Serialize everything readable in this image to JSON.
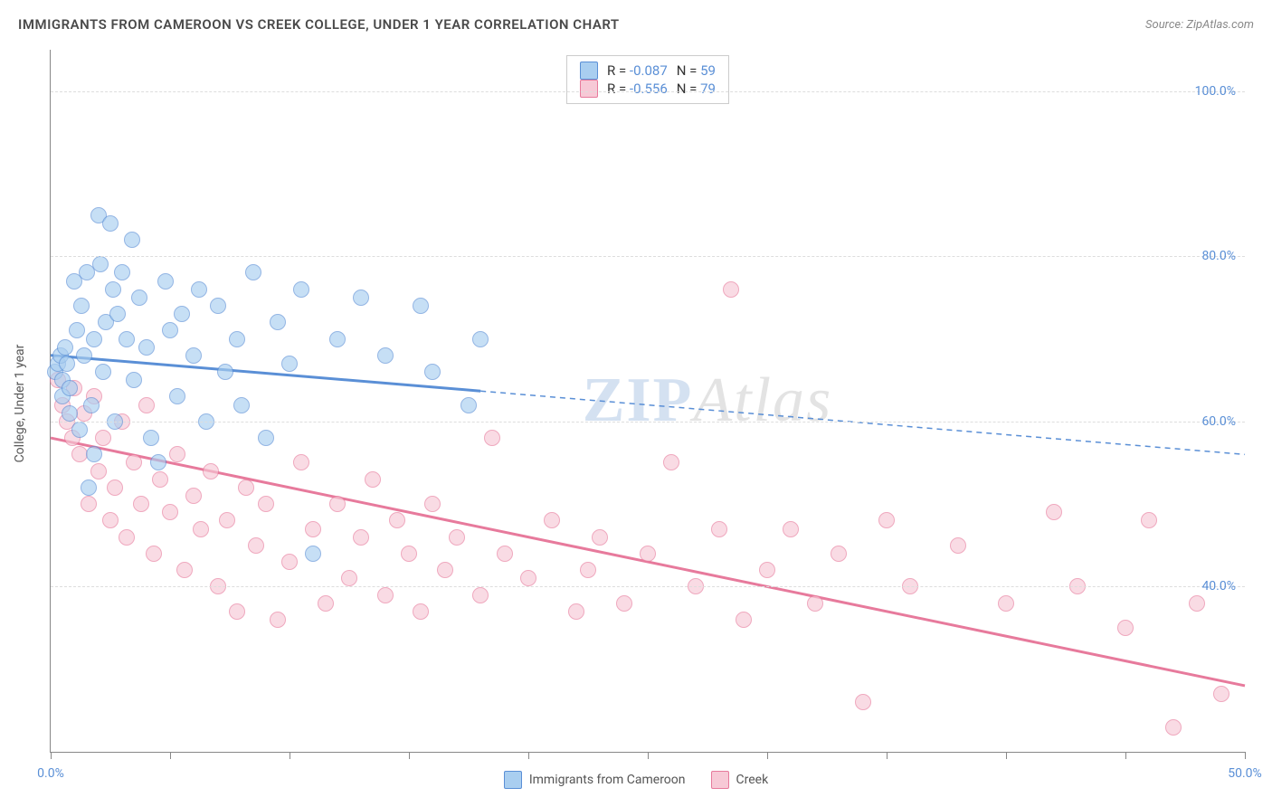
{
  "header": {
    "title": "IMMIGRANTS FROM CAMEROON VS CREEK COLLEGE, UNDER 1 YEAR CORRELATION CHART",
    "source": "Source: ZipAtlas.com"
  },
  "watermark": {
    "z": "ZIP",
    "rest": "Atlas"
  },
  "axes": {
    "ylabel": "College, Under 1 year",
    "ylim": [
      20,
      105
    ],
    "yticks": [
      40,
      60,
      80,
      100
    ],
    "ytick_labels": [
      "40.0%",
      "60.0%",
      "80.0%",
      "100.0%"
    ],
    "xlim": [
      0,
      50
    ],
    "xticks": [
      0,
      5,
      10,
      15,
      20,
      25,
      30,
      35,
      40,
      45,
      50
    ],
    "xtick_labels": {
      "0": "0.0%",
      "50": "50.0%"
    }
  },
  "legend_top": {
    "rows": [
      {
        "swatch": "blue",
        "r_label": "R =",
        "r_val": "-0.087",
        "n_label": "N =",
        "n_val": "59"
      },
      {
        "swatch": "pink",
        "r_label": "R =",
        "r_val": "-0.556",
        "n_label": "N =",
        "n_val": "79"
      }
    ]
  },
  "bottom_legend": {
    "items": [
      {
        "swatch": "blue",
        "label": "Immigrants from Cameroon"
      },
      {
        "swatch": "pink",
        "label": "Creek"
      }
    ]
  },
  "series": {
    "blue": {
      "color_fill": "#a9cef0",
      "color_stroke": "#5a8fd6",
      "marker_size": 18,
      "regression": {
        "x1": 0,
        "y1": 68,
        "x2": 50,
        "y2": 56,
        "solid_until_x": 18,
        "stroke_width": 3
      },
      "points": [
        [
          0.2,
          66
        ],
        [
          0.3,
          67
        ],
        [
          0.4,
          68
        ],
        [
          0.5,
          65
        ],
        [
          0.5,
          63
        ],
        [
          0.6,
          69
        ],
        [
          0.7,
          67
        ],
        [
          0.8,
          64
        ],
        [
          0.8,
          61
        ],
        [
          1.0,
          77
        ],
        [
          1.1,
          71
        ],
        [
          1.2,
          59
        ],
        [
          1.3,
          74
        ],
        [
          1.4,
          68
        ],
        [
          1.5,
          78
        ],
        [
          1.6,
          52
        ],
        [
          1.7,
          62
        ],
        [
          1.8,
          56
        ],
        [
          1.8,
          70
        ],
        [
          2.0,
          85
        ],
        [
          2.1,
          79
        ],
        [
          2.2,
          66
        ],
        [
          2.3,
          72
        ],
        [
          2.5,
          84
        ],
        [
          2.6,
          76
        ],
        [
          2.7,
          60
        ],
        [
          2.8,
          73
        ],
        [
          3.0,
          78
        ],
        [
          3.2,
          70
        ],
        [
          3.4,
          82
        ],
        [
          3.5,
          65
        ],
        [
          3.7,
          75
        ],
        [
          4.0,
          69
        ],
        [
          4.2,
          58
        ],
        [
          4.5,
          55
        ],
        [
          4.8,
          77
        ],
        [
          5.0,
          71
        ],
        [
          5.3,
          63
        ],
        [
          5.5,
          73
        ],
        [
          6.0,
          68
        ],
        [
          6.2,
          76
        ],
        [
          6.5,
          60
        ],
        [
          7.0,
          74
        ],
        [
          7.3,
          66
        ],
        [
          7.8,
          70
        ],
        [
          8.0,
          62
        ],
        [
          8.5,
          78
        ],
        [
          9.0,
          58
        ],
        [
          9.5,
          72
        ],
        [
          10.0,
          67
        ],
        [
          10.5,
          76
        ],
        [
          11.0,
          44
        ],
        [
          12.0,
          70
        ],
        [
          13.0,
          75
        ],
        [
          14.0,
          68
        ],
        [
          15.5,
          74
        ],
        [
          16.0,
          66
        ],
        [
          17.5,
          62
        ],
        [
          18.0,
          70
        ]
      ]
    },
    "pink": {
      "color_fill": "#f7c9d6",
      "color_stroke": "#e77a9c",
      "marker_size": 18,
      "regression": {
        "x1": 0,
        "y1": 58,
        "x2": 50,
        "y2": 28,
        "solid_until_x": 50,
        "stroke_width": 3
      },
      "points": [
        [
          0.3,
          65
        ],
        [
          0.5,
          62
        ],
        [
          0.7,
          60
        ],
        [
          0.9,
          58
        ],
        [
          1.0,
          64
        ],
        [
          1.2,
          56
        ],
        [
          1.4,
          61
        ],
        [
          1.6,
          50
        ],
        [
          1.8,
          63
        ],
        [
          2.0,
          54
        ],
        [
          2.2,
          58
        ],
        [
          2.5,
          48
        ],
        [
          2.7,
          52
        ],
        [
          3.0,
          60
        ],
        [
          3.2,
          46
        ],
        [
          3.5,
          55
        ],
        [
          3.8,
          50
        ],
        [
          4.0,
          62
        ],
        [
          4.3,
          44
        ],
        [
          4.6,
          53
        ],
        [
          5.0,
          49
        ],
        [
          5.3,
          56
        ],
        [
          5.6,
          42
        ],
        [
          6.0,
          51
        ],
        [
          6.3,
          47
        ],
        [
          6.7,
          54
        ],
        [
          7.0,
          40
        ],
        [
          7.4,
          48
        ],
        [
          7.8,
          37
        ],
        [
          8.2,
          52
        ],
        [
          8.6,
          45
        ],
        [
          9.0,
          50
        ],
        [
          9.5,
          36
        ],
        [
          10.0,
          43
        ],
        [
          10.5,
          55
        ],
        [
          11.0,
          47
        ],
        [
          11.5,
          38
        ],
        [
          12.0,
          50
        ],
        [
          12.5,
          41
        ],
        [
          13.0,
          46
        ],
        [
          13.5,
          53
        ],
        [
          14.0,
          39
        ],
        [
          14.5,
          48
        ],
        [
          15.0,
          44
        ],
        [
          15.5,
          37
        ],
        [
          16.0,
          50
        ],
        [
          16.5,
          42
        ],
        [
          17.0,
          46
        ],
        [
          18.0,
          39
        ],
        [
          18.5,
          58
        ],
        [
          19.0,
          44
        ],
        [
          20.0,
          41
        ],
        [
          21.0,
          48
        ],
        [
          22.0,
          37
        ],
        [
          22.5,
          42
        ],
        [
          23.0,
          46
        ],
        [
          24.0,
          38
        ],
        [
          25.0,
          44
        ],
        [
          26.0,
          55
        ],
        [
          27.0,
          40
        ],
        [
          28.0,
          47
        ],
        [
          28.5,
          76
        ],
        [
          29.0,
          36
        ],
        [
          30.0,
          42
        ],
        [
          31.0,
          47
        ],
        [
          32.0,
          38
        ],
        [
          33.0,
          44
        ],
        [
          34.0,
          26
        ],
        [
          35.0,
          48
        ],
        [
          36.0,
          40
        ],
        [
          38.0,
          45
        ],
        [
          40.0,
          38
        ],
        [
          42.0,
          49
        ],
        [
          43.0,
          40
        ],
        [
          45.0,
          35
        ],
        [
          46.0,
          48
        ],
        [
          47.0,
          23
        ],
        [
          48.0,
          38
        ],
        [
          49.0,
          27
        ]
      ]
    }
  },
  "styling": {
    "background_color": "#ffffff",
    "grid_color": "#dddddd",
    "axis_color": "#888888",
    "tick_label_color": "#5a8fd6",
    "title_color": "#4a4a4a",
    "title_fontsize": 15
  }
}
